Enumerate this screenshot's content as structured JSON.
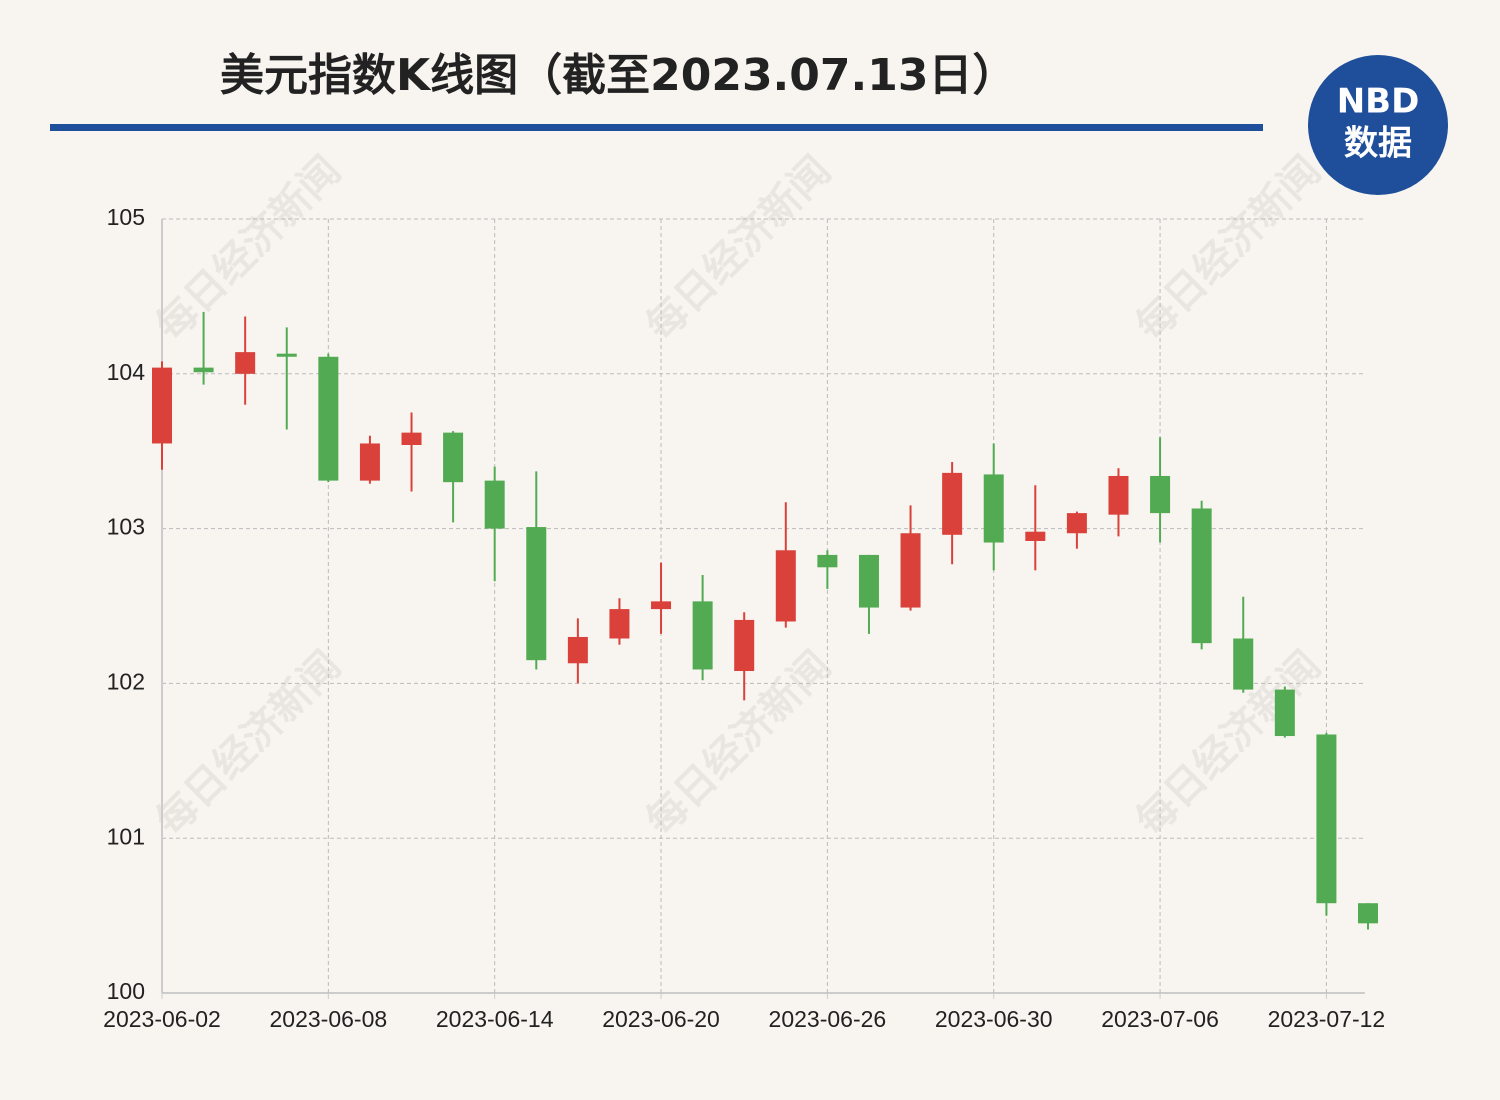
{
  "chart_data": {
    "type": "candlestick",
    "title": "美元指数K线图（截至2023.07.13日）",
    "logo": {
      "top": "NBD",
      "bottom": "数据"
    },
    "watermark": "每日经济新闻",
    "categories": [
      "2023-06-02",
      null,
      null,
      null,
      "2023-06-08",
      null,
      null,
      null,
      "2023-06-14",
      null,
      null,
      null,
      "2023-06-20",
      null,
      null,
      null,
      "2023-06-26",
      null,
      null,
      null,
      "2023-06-30",
      null,
      null,
      null,
      "2023-07-06",
      null,
      null,
      null,
      "2023-07-12",
      null
    ],
    "open": [
      103.55,
      104.04,
      104.0,
      104.13,
      104.11,
      103.31,
      103.54,
      103.62,
      103.31,
      103.01,
      102.13,
      102.29,
      102.48,
      102.53,
      102.08,
      102.4,
      102.83,
      102.83,
      102.49,
      102.96,
      103.35,
      102.92,
      102.97,
      103.09,
      103.34,
      103.13,
      102.29,
      101.96,
      101.67,
      100.58
    ],
    "high": [
      104.08,
      104.4,
      104.37,
      104.3,
      104.13,
      103.6,
      103.75,
      103.63,
      103.4,
      103.37,
      102.42,
      102.55,
      102.78,
      102.7,
      102.46,
      103.17,
      102.86,
      102.83,
      103.15,
      103.43,
      103.55,
      103.28,
      103.11,
      103.39,
      103.59,
      103.18,
      102.56,
      101.98,
      101.68,
      100.58
    ],
    "low": [
      103.38,
      103.93,
      103.8,
      103.64,
      103.3,
      103.29,
      103.24,
      103.04,
      102.66,
      102.09,
      102.0,
      102.25,
      102.32,
      102.02,
      101.89,
      102.36,
      102.61,
      102.32,
      102.47,
      102.77,
      102.73,
      102.73,
      102.87,
      102.95,
      102.91,
      102.22,
      101.94,
      101.65,
      100.5,
      100.41
    ],
    "close": [
      104.04,
      104.01,
      104.14,
      104.11,
      103.31,
      103.55,
      103.62,
      103.3,
      103.0,
      102.15,
      102.3,
      102.48,
      102.53,
      102.09,
      102.41,
      102.86,
      102.75,
      102.49,
      102.97,
      103.36,
      102.91,
      102.98,
      103.1,
      103.34,
      103.1,
      102.26,
      101.96,
      101.66,
      100.58,
      100.45
    ],
    "up_color": "#d9413a",
    "down_color": "#52ab52",
    "ylim": [
      100,
      105
    ],
    "yticks": [
      100,
      101,
      102,
      103,
      104,
      105
    ],
    "grid": true
  }
}
